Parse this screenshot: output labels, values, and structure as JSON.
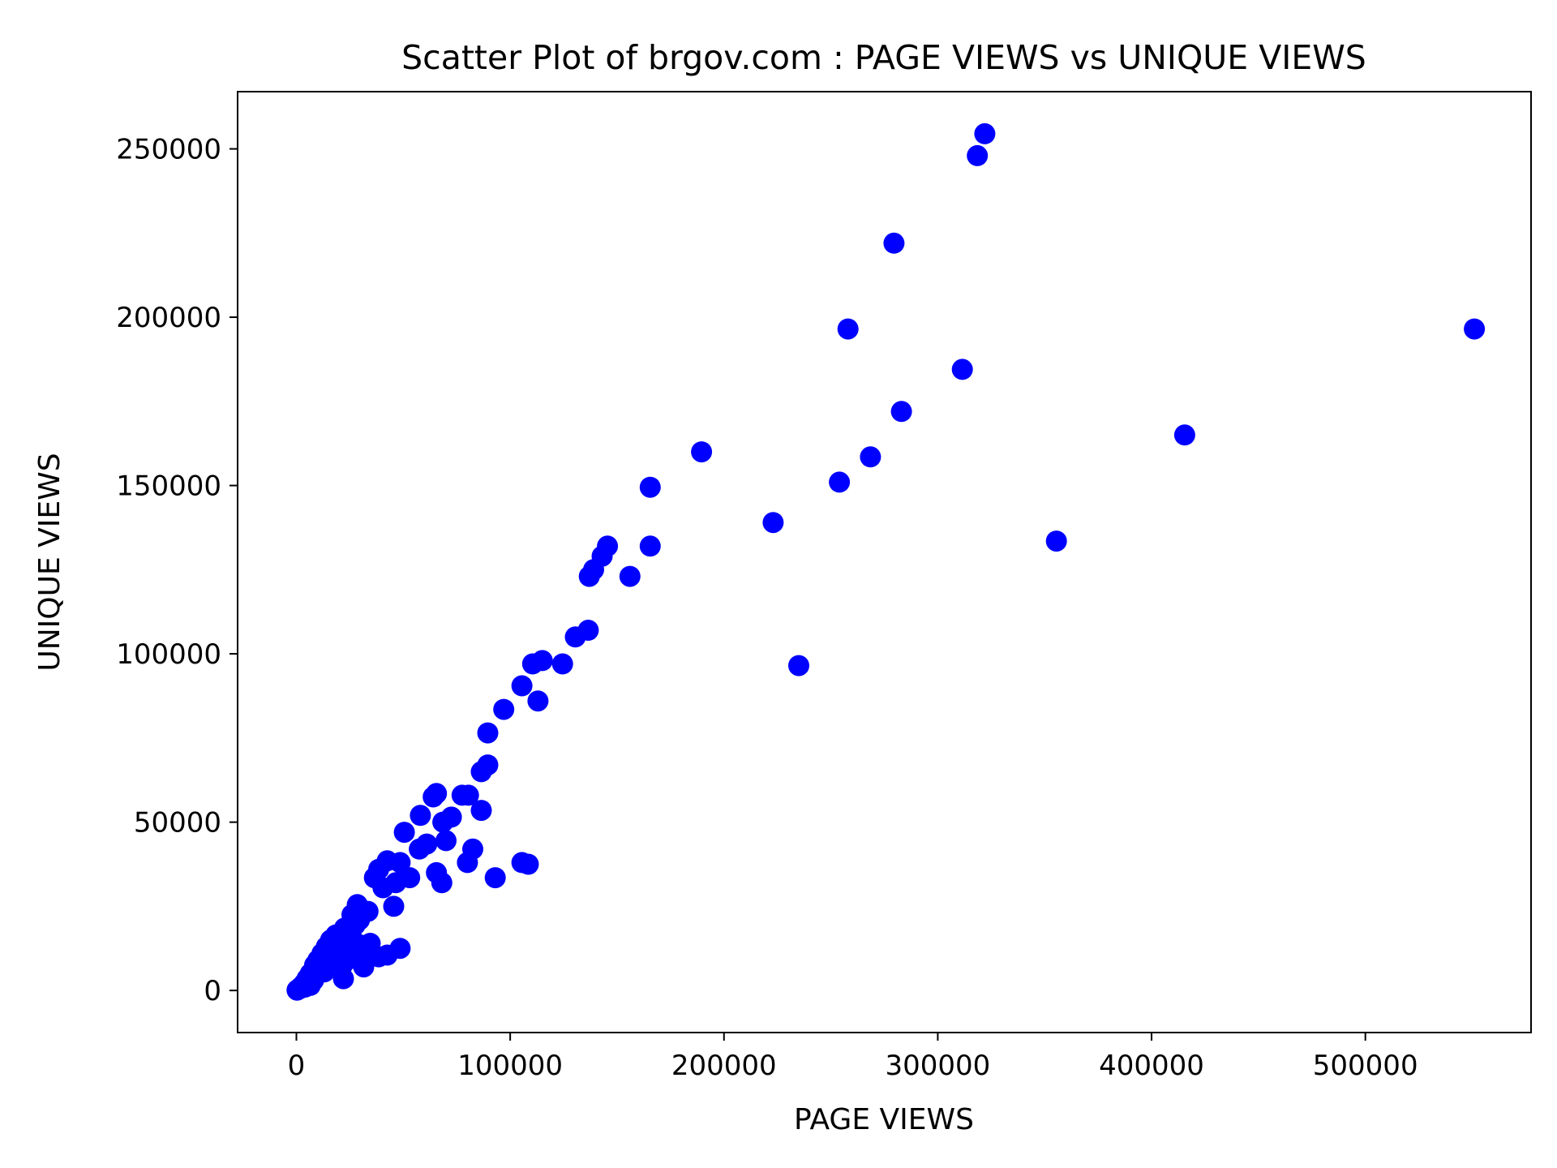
{
  "chart_data": {
    "type": "scatter",
    "title": "Scatter Plot of brgov.com : PAGE VIEWS vs UNIQUE VIEWS",
    "xlabel": "PAGE VIEWS",
    "ylabel": "UNIQUE VIEWS",
    "xlim": [
      -27500,
      577500
    ],
    "ylim": [
      -12500,
      267000
    ],
    "xticks": [
      0,
      100000,
      200000,
      300000,
      400000,
      500000
    ],
    "xtick_labels": [
      "0",
      "100000",
      "200000",
      "300000",
      "400000",
      "500000"
    ],
    "yticks": [
      0,
      50000,
      100000,
      150000,
      200000,
      250000
    ],
    "ytick_labels": [
      "0",
      "50000",
      "100000",
      "150000",
      "200000",
      "250000"
    ],
    "grid": false,
    "legend": "none",
    "marker_color": "#0000ff",
    "points": [
      [
        322000,
        254500
      ],
      [
        318500,
        248000
      ],
      [
        279500,
        222000
      ],
      [
        258000,
        196500
      ],
      [
        551000,
        196500
      ],
      [
        311500,
        184500
      ],
      [
        283000,
        172000
      ],
      [
        415500,
        165000
      ],
      [
        189500,
        160000
      ],
      [
        268500,
        158500
      ],
      [
        165500,
        149500
      ],
      [
        254000,
        151000
      ],
      [
        223000,
        139000
      ],
      [
        355500,
        133500
      ],
      [
        145500,
        132000
      ],
      [
        165500,
        132000
      ],
      [
        143000,
        129000
      ],
      [
        139000,
        125000
      ],
      [
        137000,
        123000
      ],
      [
        156000,
        123000
      ],
      [
        136500,
        107000
      ],
      [
        130500,
        105000
      ],
      [
        235000,
        96500
      ],
      [
        115000,
        98000
      ],
      [
        110500,
        97000
      ],
      [
        124500,
        97000
      ],
      [
        105500,
        90500
      ],
      [
        113000,
        86000
      ],
      [
        97000,
        83500
      ],
      [
        89500,
        76500
      ],
      [
        89500,
        67000
      ],
      [
        86500,
        65000
      ],
      [
        65500,
        58500
      ],
      [
        64000,
        57500
      ],
      [
        77500,
        58000
      ],
      [
        80500,
        58000
      ],
      [
        86500,
        53500
      ],
      [
        58000,
        52000
      ],
      [
        72500,
        51500
      ],
      [
        68500,
        50000
      ],
      [
        50500,
        47000
      ],
      [
        61000,
        43500
      ],
      [
        70000,
        44500
      ],
      [
        57500,
        42000
      ],
      [
        82500,
        42000
      ],
      [
        105500,
        38000
      ],
      [
        108500,
        37500
      ],
      [
        80000,
        38000
      ],
      [
        42500,
        38500
      ],
      [
        48500,
        38000
      ],
      [
        38500,
        36000
      ],
      [
        36500,
        33500
      ],
      [
        65500,
        35000
      ],
      [
        68000,
        32000
      ],
      [
        93000,
        33500
      ],
      [
        53000,
        33500
      ],
      [
        40500,
        30500
      ],
      [
        46500,
        32000
      ],
      [
        45500,
        25000
      ],
      [
        28500,
        25500
      ],
      [
        26000,
        22500
      ],
      [
        33500,
        23500
      ],
      [
        29500,
        21000
      ],
      [
        22500,
        18500
      ],
      [
        18500,
        16500
      ],
      [
        16000,
        15000
      ],
      [
        26000,
        15500
      ],
      [
        34500,
        14000
      ],
      [
        14000,
        13000
      ],
      [
        12000,
        11000
      ],
      [
        20000,
        12500
      ],
      [
        29000,
        11500
      ],
      [
        48500,
        12500
      ],
      [
        42500,
        10500
      ],
      [
        38500,
        10000
      ],
      [
        25500,
        9500
      ],
      [
        10000,
        9000
      ],
      [
        8500,
        7500
      ],
      [
        17500,
        9000
      ],
      [
        21500,
        7500
      ],
      [
        31500,
        7000
      ],
      [
        9000,
        6000
      ],
      [
        6500,
        5000
      ],
      [
        13000,
        5500
      ],
      [
        22000,
        3500
      ],
      [
        8000,
        3000
      ],
      [
        5000,
        3500
      ],
      [
        4500,
        2500
      ],
      [
        3500,
        2000
      ],
      [
        6500,
        1500
      ],
      [
        3000,
        1500
      ],
      [
        2000,
        1000
      ],
      [
        1500,
        500
      ],
      [
        700,
        300
      ],
      [
        300,
        100
      ],
      [
        12000,
        8000
      ],
      [
        16000,
        13000
      ],
      [
        20000,
        15000
      ],
      [
        24000,
        17000
      ],
      [
        27500,
        19500
      ],
      [
        30000,
        13500
      ],
      [
        36000,
        10500
      ],
      [
        15000,
        9500
      ],
      [
        11000,
        6500
      ],
      [
        19000,
        10000
      ],
      [
        23500,
        12000
      ],
      [
        7500,
        4500
      ],
      [
        4000,
        1000
      ]
    ]
  }
}
